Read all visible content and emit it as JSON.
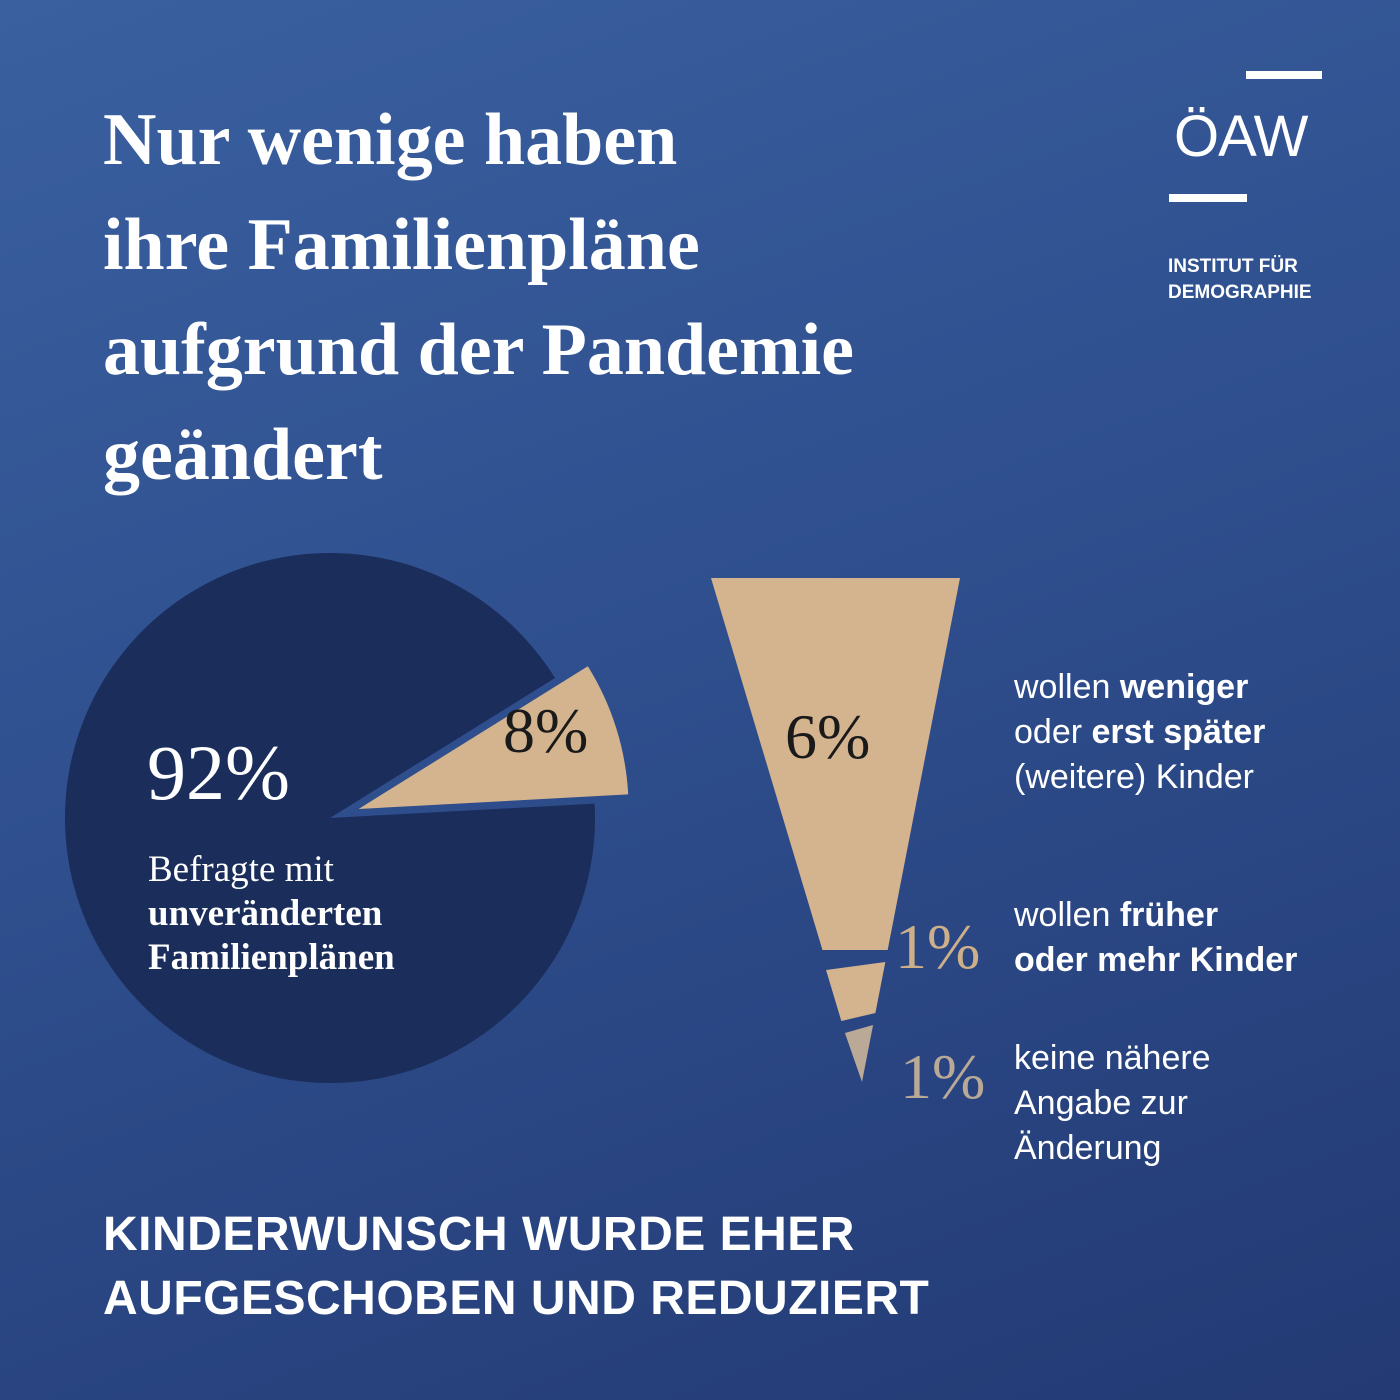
{
  "title": {
    "lines": [
      "Nur wenige haben",
      "ihre Familienpläne",
      "aufgrund der Pandemie",
      "geändert"
    ]
  },
  "logo": {
    "mark": "ÖAW",
    "institute_lines": [
      "INSTITUT FÜR",
      "DEMOGRAPHIE"
    ]
  },
  "colors": {
    "pie_main": "#1b2d5a",
    "slice_accent": "#d4b48e",
    "slice_muted": "#b9a996",
    "text": "#ffffff"
  },
  "main_pie": {
    "main_label": "92%",
    "desc_line1": "Befragte mit",
    "desc_line2": "unveränderten",
    "desc_line3": "Familienplänen",
    "slice_label": "8%"
  },
  "breakdown": [
    {
      "pct": "6%",
      "line1_plain": "wollen ",
      "line1_bold": "weniger",
      "line2_plain": "oder ",
      "line2_bold": "erst später",
      "line3_plain": "(weitere) Kinder"
    },
    {
      "pct": "1%",
      "line1_plain": "wollen ",
      "line1_bold": "früher",
      "line2_bold": "oder mehr Kinder"
    },
    {
      "pct": "1%",
      "line1_plain": "keine nähere",
      "line2_plain": "Angabe zur",
      "line3_plain": "Änderung"
    }
  ],
  "footer": {
    "lines": [
      "KINDERWUNSCH WURDE EHER",
      "AUFGESCHOBEN UND REDUZIERT"
    ]
  },
  "chart_data": {
    "type": "pie",
    "categories": [
      "Befragte mit unveränderten Familienplänen",
      "wollen weniger oder erst später (weitere) Kinder",
      "wollen früher oder mehr Kinder",
      "keine nähere Angabe zur Änderung"
    ],
    "values": [
      92,
      6,
      1,
      1
    ],
    "exploded_slice_total": 8,
    "breakdown_of_exploded_slice": [
      6,
      1,
      1
    ]
  }
}
